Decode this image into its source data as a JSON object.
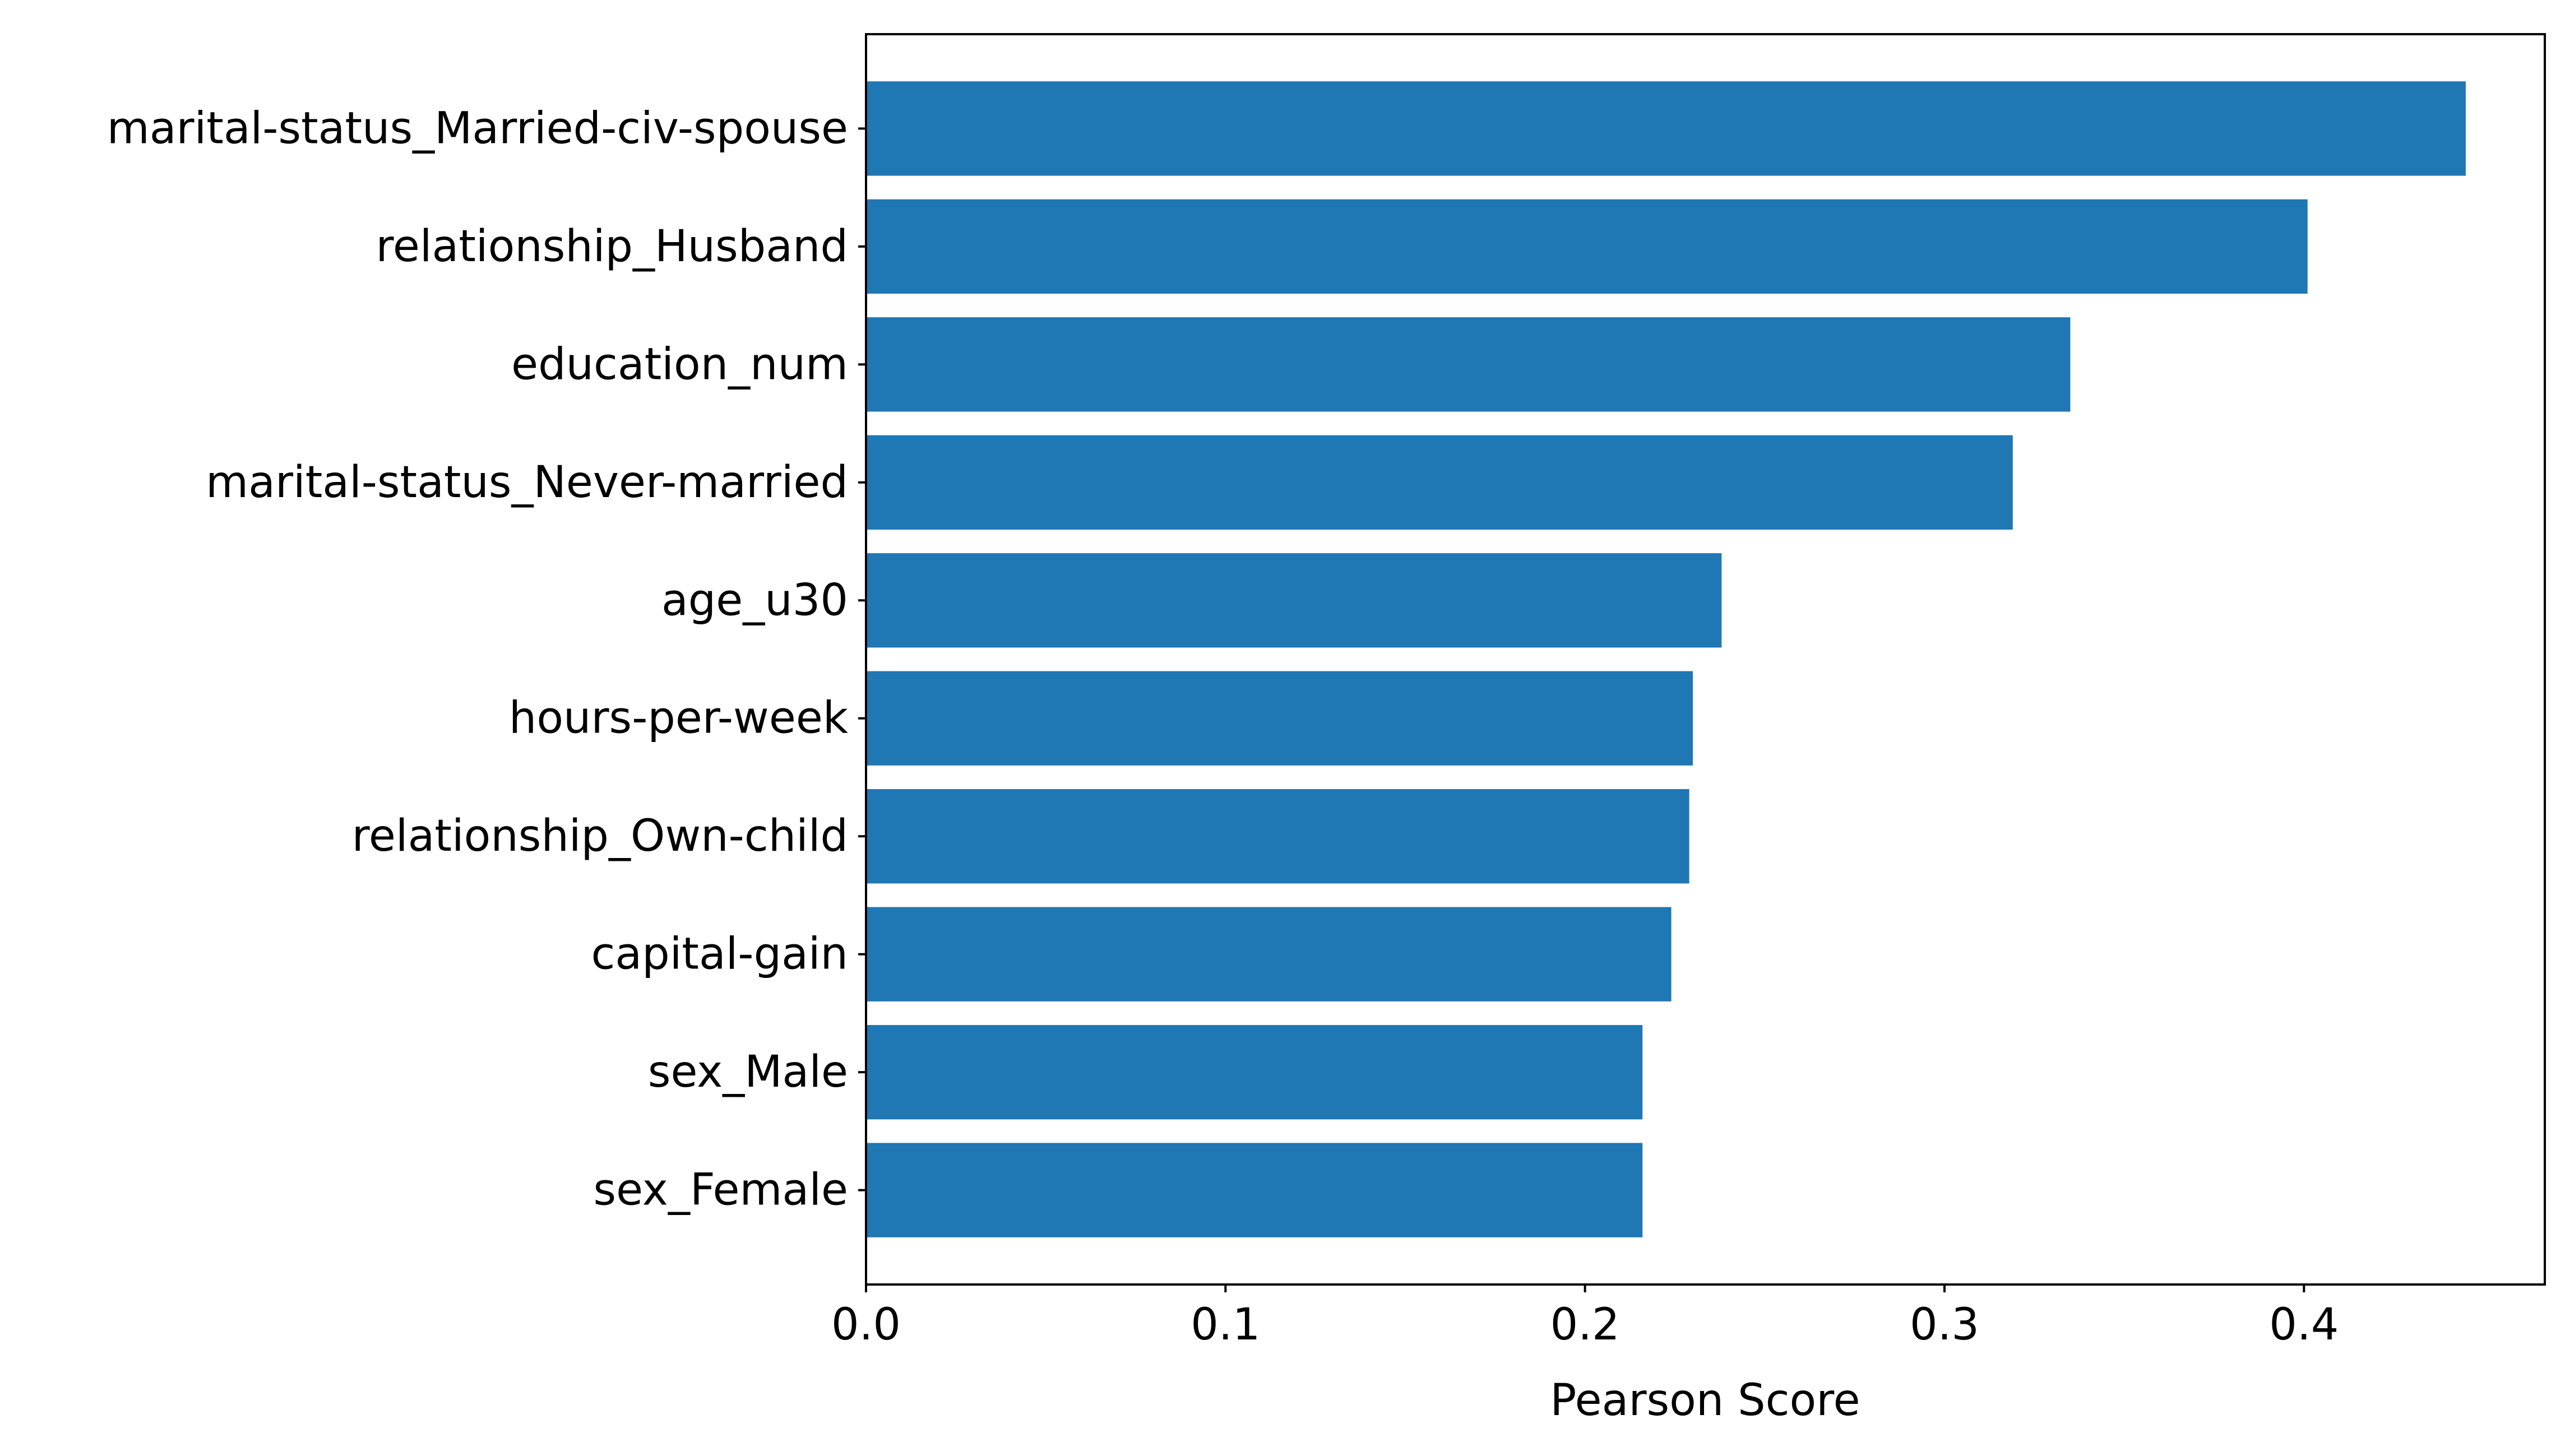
{
  "chart_data": {
    "type": "bar",
    "orientation": "horizontal",
    "title": "",
    "xlabel": "Pearson Score",
    "ylabel": "",
    "xlim": [
      0,
      0.467
    ],
    "xticks": [
      "0.0",
      "0.1",
      "0.2",
      "0.3",
      "0.4"
    ],
    "xtick_values": [
      0.0,
      0.1,
      0.2,
      0.3,
      0.4
    ],
    "grid": false,
    "legend": "none",
    "bar_color": "#1f77b4",
    "categories": [
      "marital-status_Married-civ-spouse",
      "relationship_Husband",
      "education_num",
      "marital-status_Never-married",
      "age_u30",
      "hours-per-week",
      "relationship_Own-child",
      "capital-gain",
      "sex_Male",
      "sex_Female"
    ],
    "values": [
      0.445,
      0.401,
      0.335,
      0.319,
      0.238,
      0.23,
      0.229,
      0.224,
      0.216,
      0.216
    ]
  }
}
